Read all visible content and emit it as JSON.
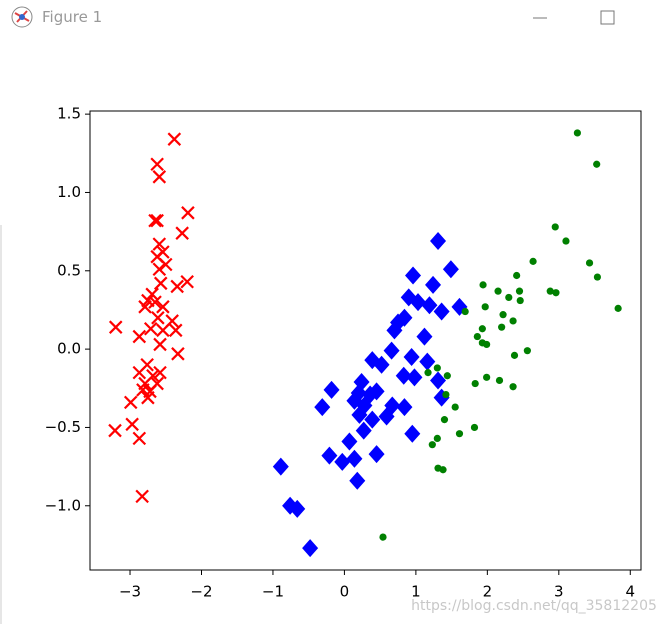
{
  "window": {
    "title": "Figure 1"
  },
  "watermark": "https://blog.csdn.net/qq_35812205",
  "chart_data": {
    "type": "scatter",
    "xlim": [
      -3.56,
      4.15
    ],
    "ylim": [
      -1.41,
      1.52
    ],
    "xticks": [
      {
        "value": -3,
        "label": "−3"
      },
      {
        "value": -2,
        "label": "−2"
      },
      {
        "value": -1,
        "label": "−1"
      },
      0,
      1,
      2,
      3,
      4
    ],
    "yticks": [
      {
        "value": -1,
        "label": "−1.0"
      },
      {
        "value": -0.5,
        "label": "−0.5"
      },
      {
        "value": 0,
        "label": "0.0"
      },
      {
        "value": 0.5,
        "label": "0.5"
      },
      {
        "value": 1,
        "label": "1.0"
      },
      {
        "value": 1.5,
        "label": "1.5"
      }
    ],
    "series": [
      {
        "color": "#ff0000",
        "marker": "x",
        "x": [
          -2.38,
          -2.62,
          -2.59,
          -2.19,
          -2.62,
          -2.65,
          -2.27,
          -2.59,
          -2.54,
          -2.62,
          -2.5,
          -2.59,
          -2.2,
          -2.57,
          -2.34,
          -2.69,
          -2.75,
          -2.65,
          -2.79,
          -2.54,
          -2.61,
          -2.41,
          -3.2,
          -2.71,
          -2.54,
          -2.36,
          -2.87,
          -2.58,
          -2.33,
          -2.76,
          -2.58,
          -2.87,
          -2.68,
          -2.79,
          -2.62,
          -2.72,
          -2.82,
          -2.75,
          -2.99,
          -2.97,
          -3.21,
          -2.87,
          -2.83
        ],
        "values": [
          1.34,
          1.18,
          1.1,
          0.87,
          0.82,
          0.82,
          0.74,
          0.67,
          0.62,
          0.59,
          0.54,
          0.51,
          0.43,
          0.42,
          0.4,
          0.35,
          0.31,
          0.3,
          0.27,
          0.27,
          0.2,
          0.18,
          0.14,
          0.13,
          0.12,
          0.12,
          0.08,
          0.03,
          -0.03,
          -0.1,
          -0.15,
          -0.15,
          -0.17,
          -0.22,
          -0.22,
          -0.27,
          -0.26,
          -0.31,
          -0.34,
          -0.48,
          -0.52,
          -0.57,
          -0.94
        ]
      },
      {
        "color": "#0000ff",
        "marker": "D",
        "x": [
          1.31,
          1.49,
          0.96,
          1.24,
          0.9,
          1.03,
          1.61,
          1.36,
          1.19,
          0.84,
          0.75,
          0.7,
          1.12,
          0.66,
          0.94,
          0.39,
          1.16,
          0.52,
          0.83,
          0.98,
          1.31,
          0.24,
          0.45,
          -0.18,
          0.2,
          0.36,
          0.14,
          1.36,
          0.67,
          0.84,
          -0.31,
          0.28,
          0.21,
          0.39,
          0.59,
          0.27,
          0.07,
          0.95,
          -0.21,
          0.45,
          0.14,
          -0.03,
          -0.89,
          0.18,
          -0.76,
          -0.66,
          -0.48
        ],
        "values": [
          0.69,
          0.51,
          0.47,
          0.41,
          0.33,
          0.3,
          0.27,
          0.24,
          0.28,
          0.2,
          0.17,
          0.12,
          0.08,
          -0.01,
          -0.05,
          -0.07,
          -0.08,
          -0.1,
          -0.17,
          -0.18,
          -0.2,
          -0.21,
          -0.27,
          -0.26,
          -0.28,
          -0.29,
          -0.33,
          -0.31,
          -0.36,
          -0.37,
          -0.37,
          -0.36,
          -0.42,
          -0.45,
          -0.43,
          -0.52,
          -0.59,
          -0.54,
          -0.68,
          -0.67,
          -0.7,
          -0.72,
          -0.75,
          -0.84,
          -1.0,
          -1.02,
          -1.27
        ]
      },
      {
        "color": "#008000",
        "marker": "o",
        "x": [
          3.26,
          3.53,
          2.95,
          3.1,
          2.64,
          3.43,
          2.41,
          3.54,
          1.94,
          2.15,
          2.45,
          2.3,
          2.88,
          2.96,
          2.46,
          1.97,
          3.83,
          1.69,
          2.22,
          2.36,
          1.93,
          2.2,
          1.86,
          1.93,
          1.99,
          2.56,
          2.38,
          1.3,
          1.17,
          1.44,
          1.99,
          2.17,
          1.83,
          2.36,
          1.42,
          1.55,
          1.4,
          1.82,
          1.61,
          1.3,
          1.23,
          1.31,
          1.38,
          0.54
        ],
        "values": [
          1.38,
          1.18,
          0.78,
          0.69,
          0.56,
          0.55,
          0.47,
          0.46,
          0.41,
          0.37,
          0.37,
          0.33,
          0.37,
          0.36,
          0.31,
          0.27,
          0.26,
          0.24,
          0.22,
          0.18,
          0.13,
          0.14,
          0.08,
          0.04,
          0.03,
          -0.01,
          -0.04,
          -0.12,
          -0.15,
          -0.17,
          -0.18,
          -0.2,
          -0.22,
          -0.24,
          -0.29,
          -0.37,
          -0.45,
          -0.5,
          -0.54,
          -0.57,
          -0.61,
          -0.76,
          -0.77,
          -1.2
        ]
      }
    ]
  }
}
